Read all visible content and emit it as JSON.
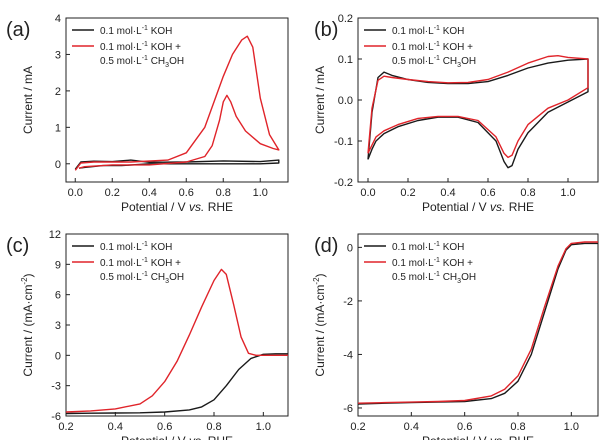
{
  "colors": {
    "black_series": "#1a1a1a",
    "red_series": "#e0242a",
    "axis": "#222222"
  },
  "xlabel": {
    "prefix": "Potential / V ",
    "italic": "vs.",
    "suffix": " RHE"
  },
  "chart_data": [
    {
      "panel": "(a)",
      "type": "line",
      "ylabel": "Current / mA",
      "xlim": [
        -0.05,
        1.15
      ],
      "ylim": [
        -0.5,
        4
      ],
      "xticks": [
        "0.0",
        "0.2",
        "0.4",
        "0.6",
        "0.8",
        "1.0"
      ],
      "yticks": [
        "0",
        "1",
        "2",
        "3",
        "4"
      ],
      "legend": {
        "position": "top-left",
        "black": {
          "main": "0.1 mol·L",
          "sup": "-1",
          "tail": " KOH"
        },
        "red_line1": {
          "main": "0.1 mol·L",
          "sup": "-1",
          "tail": " KOH +"
        },
        "red_line2": {
          "main": "0.5 mol·L",
          "sup": "-1",
          "tail": " CH",
          "sub": "3",
          "tail2": "OH"
        }
      },
      "series": [
        {
          "name": "0.1 mol·L-1 KOH",
          "color": "#1a1a1a",
          "points": [
            [
              0.0,
              -0.15
            ],
            [
              0.03,
              0.05
            ],
            [
              0.1,
              0.07
            ],
            [
              0.2,
              0.06
            ],
            [
              0.3,
              0.1
            ],
            [
              0.4,
              0.04
            ],
            [
              0.6,
              0.05
            ],
            [
              0.8,
              0.08
            ],
            [
              1.0,
              0.06
            ],
            [
              1.1,
              0.1
            ],
            [
              1.1,
              0.02
            ],
            [
              1.0,
              0.0
            ],
            [
              0.8,
              0.0
            ],
            [
              0.6,
              0.0
            ],
            [
              0.4,
              0.0
            ],
            [
              0.25,
              -0.05
            ],
            [
              0.15,
              -0.05
            ],
            [
              0.05,
              -0.1
            ],
            [
              0.02,
              -0.12
            ]
          ]
        },
        {
          "name": "0.1 mol·L-1 KOH + 0.5 mol·L-1 CH3OH",
          "color": "#e0242a",
          "points": [
            [
              0.0,
              -0.18
            ],
            [
              0.03,
              0.02
            ],
            [
              0.1,
              0.05
            ],
            [
              0.3,
              0.05
            ],
            [
              0.5,
              0.1
            ],
            [
              0.6,
              0.3
            ],
            [
              0.7,
              1.0
            ],
            [
              0.8,
              2.4
            ],
            [
              0.85,
              3.0
            ],
            [
              0.9,
              3.4
            ],
            [
              0.93,
              3.5
            ],
            [
              0.96,
              3.2
            ],
            [
              1.0,
              1.8
            ],
            [
              1.05,
              0.8
            ],
            [
              1.1,
              0.38
            ],
            [
              1.07,
              0.42
            ],
            [
              1.0,
              0.55
            ],
            [
              0.92,
              0.9
            ],
            [
              0.87,
              1.3
            ],
            [
              0.84,
              1.7
            ],
            [
              0.82,
              1.88
            ],
            [
              0.8,
              1.7
            ],
            [
              0.78,
              1.2
            ],
            [
              0.74,
              0.5
            ],
            [
              0.7,
              0.2
            ],
            [
              0.6,
              0.05
            ],
            [
              0.4,
              -0.03
            ],
            [
              0.2,
              -0.03
            ],
            [
              0.05,
              -0.08
            ],
            [
              0.02,
              -0.12
            ]
          ]
        }
      ]
    },
    {
      "panel": "(b)",
      "type": "line",
      "ylabel": "Current / mA",
      "xlim": [
        -0.05,
        1.15
      ],
      "ylim": [
        -0.2,
        0.2
      ],
      "xticks": [
        "0.0",
        "0.2",
        "0.4",
        "0.6",
        "0.8",
        "1.0"
      ],
      "yticks": [
        "-0.2",
        "-0.1",
        "0.0",
        "0.1",
        "0.2"
      ],
      "legend": {
        "position": "top-left",
        "black": {
          "main": "0.1 mol·L",
          "sup": "-1",
          "tail": " KOH"
        },
        "red_line1": {
          "main": "0.1 mol·L",
          "sup": "-1",
          "tail": " KOH +"
        },
        "red_line2": {
          "main": "0.5 mol·L",
          "sup": "-1",
          "tail": " CH",
          "sub": "3",
          "tail2": "OH"
        }
      },
      "series": [
        {
          "name": "0.1 mol·L-1 KOH",
          "color": "#1a1a1a",
          "points": [
            [
              0.0,
              -0.145
            ],
            [
              0.02,
              -0.03
            ],
            [
              0.05,
              0.055
            ],
            [
              0.08,
              0.068
            ],
            [
              0.12,
              0.06
            ],
            [
              0.2,
              0.05
            ],
            [
              0.3,
              0.043
            ],
            [
              0.4,
              0.04
            ],
            [
              0.5,
              0.04
            ],
            [
              0.6,
              0.045
            ],
            [
              0.7,
              0.06
            ],
            [
              0.8,
              0.078
            ],
            [
              0.9,
              0.09
            ],
            [
              1.0,
              0.097
            ],
            [
              1.1,
              0.1
            ],
            [
              1.1,
              0.02
            ],
            [
              1.0,
              -0.005
            ],
            [
              0.9,
              -0.03
            ],
            [
              0.8,
              -0.08
            ],
            [
              0.75,
              -0.12
            ],
            [
              0.72,
              -0.16
            ],
            [
              0.7,
              -0.165
            ],
            [
              0.68,
              -0.15
            ],
            [
              0.64,
              -0.1
            ],
            [
              0.55,
              -0.055
            ],
            [
              0.45,
              -0.042
            ],
            [
              0.35,
              -0.042
            ],
            [
              0.25,
              -0.05
            ],
            [
              0.15,
              -0.065
            ],
            [
              0.08,
              -0.082
            ],
            [
              0.04,
              -0.1
            ],
            [
              0.02,
              -0.12
            ],
            [
              0.0,
              -0.145
            ]
          ]
        },
        {
          "name": "0.1 mol·L-1 KOH + 0.5 mol·L-1 CH3OH",
          "color": "#e0242a",
          "points": [
            [
              0.0,
              -0.13
            ],
            [
              0.02,
              -0.02
            ],
            [
              0.05,
              0.048
            ],
            [
              0.08,
              0.058
            ],
            [
              0.12,
              0.055
            ],
            [
              0.2,
              0.05
            ],
            [
              0.3,
              0.045
            ],
            [
              0.4,
              0.042
            ],
            [
              0.5,
              0.043
            ],
            [
              0.6,
              0.05
            ],
            [
              0.7,
              0.068
            ],
            [
              0.8,
              0.09
            ],
            [
              0.9,
              0.106
            ],
            [
              0.95,
              0.108
            ],
            [
              1.0,
              0.104
            ],
            [
              1.1,
              0.1
            ],
            [
              1.1,
              0.03
            ],
            [
              1.0,
              0.0
            ],
            [
              0.9,
              -0.02
            ],
            [
              0.8,
              -0.06
            ],
            [
              0.75,
              -0.1
            ],
            [
              0.72,
              -0.135
            ],
            [
              0.7,
              -0.14
            ],
            [
              0.68,
              -0.13
            ],
            [
              0.64,
              -0.09
            ],
            [
              0.55,
              -0.05
            ],
            [
              0.45,
              -0.04
            ],
            [
              0.35,
              -0.04
            ],
            [
              0.25,
              -0.045
            ],
            [
              0.15,
              -0.06
            ],
            [
              0.08,
              -0.075
            ],
            [
              0.04,
              -0.09
            ],
            [
              0.02,
              -0.11
            ],
            [
              0.0,
              -0.13
            ]
          ]
        }
      ]
    },
    {
      "panel": "(c)",
      "type": "line",
      "ylabel": "Current / (mA·cm",
      "ylabel_sup": "-2",
      "ylabel_tail": ")",
      "xlim": [
        0.2,
        1.1
      ],
      "ylim": [
        -6,
        12
      ],
      "xticks": [
        "0.2",
        "0.4",
        "0.6",
        "0.8",
        "1.0"
      ],
      "yticks": [
        "-6",
        "-3",
        "0",
        "3",
        "6",
        "9",
        "12"
      ],
      "legend": {
        "position": "top-left",
        "black": {
          "main": "0.1 mol·L",
          "sup": "-1",
          "tail": " KOH"
        },
        "red_line1": {
          "main": "0.1 mol·L",
          "sup": "-1",
          "tail": " KOH +"
        },
        "red_line2": {
          "main": "0.5 mol·L",
          "sup": "-1",
          "tail": " CH",
          "sub": "3",
          "tail2": "OH"
        }
      },
      "series": [
        {
          "name": "0.1 mol·L-1 KOH",
          "color": "#1a1a1a",
          "points": [
            [
              0.2,
              -5.75
            ],
            [
              0.3,
              -5.72
            ],
            [
              0.4,
              -5.7
            ],
            [
              0.5,
              -5.68
            ],
            [
              0.6,
              -5.6
            ],
            [
              0.7,
              -5.4
            ],
            [
              0.75,
              -5.1
            ],
            [
              0.8,
              -4.4
            ],
            [
              0.85,
              -3.0
            ],
            [
              0.9,
              -1.4
            ],
            [
              0.95,
              -0.3
            ],
            [
              1.0,
              0.1
            ],
            [
              1.05,
              0.15
            ],
            [
              1.1,
              0.15
            ]
          ]
        },
        {
          "name": "0.1 mol·L-1 KOH + 0.5 mol·L-1 CH3OH",
          "color": "#e0242a",
          "points": [
            [
              0.2,
              -5.6
            ],
            [
              0.3,
              -5.5
            ],
            [
              0.4,
              -5.3
            ],
            [
              0.5,
              -4.8
            ],
            [
              0.55,
              -4.0
            ],
            [
              0.6,
              -2.6
            ],
            [
              0.65,
              -0.6
            ],
            [
              0.7,
              2.0
            ],
            [
              0.75,
              4.8
            ],
            [
              0.8,
              7.4
            ],
            [
              0.83,
              8.5
            ],
            [
              0.85,
              8.0
            ],
            [
              0.88,
              5.0
            ],
            [
              0.91,
              1.8
            ],
            [
              0.94,
              0.2
            ],
            [
              0.97,
              0.0
            ],
            [
              1.0,
              0.0
            ],
            [
              1.1,
              0.0
            ]
          ]
        }
      ]
    },
    {
      "panel": "(d)",
      "type": "line",
      "ylabel": "Current / (mA·cm",
      "ylabel_sup": "-2",
      "ylabel_tail": ")",
      "xlim": [
        0.2,
        1.1
      ],
      "ylim": [
        -6.3,
        0.5
      ],
      "xticks": [
        "0.2",
        "0.4",
        "0.6",
        "0.8",
        "1.0"
      ],
      "yticks": [
        "-6",
        "-4",
        "-2",
        "0"
      ],
      "legend": {
        "position": "top-left",
        "black": {
          "main": "0.1 mol·L",
          "sup": "-1",
          "tail": " KOH"
        },
        "red_line1": {
          "main": "0.1 mol·L",
          "sup": "-1",
          "tail": " KOH +"
        },
        "red_line2": {
          "main": "0.5 mol·L",
          "sup": "-1",
          "tail": " CH",
          "sub": "3",
          "tail2": "OH"
        }
      },
      "series": [
        {
          "name": "0.1 mol·L-1 KOH",
          "color": "#1a1a1a",
          "points": [
            [
              0.2,
              -5.85
            ],
            [
              0.3,
              -5.82
            ],
            [
              0.4,
              -5.8
            ],
            [
              0.5,
              -5.78
            ],
            [
              0.6,
              -5.76
            ],
            [
              0.7,
              -5.65
            ],
            [
              0.75,
              -5.45
            ],
            [
              0.8,
              -5.0
            ],
            [
              0.85,
              -4.0
            ],
            [
              0.9,
              -2.4
            ],
            [
              0.95,
              -0.8
            ],
            [
              0.98,
              -0.1
            ],
            [
              1.0,
              0.1
            ],
            [
              1.05,
              0.15
            ],
            [
              1.1,
              0.15
            ]
          ]
        },
        {
          "name": "0.1 mol·L-1 KOH + 0.5 mol·L-1 CH3OH",
          "color": "#e0242a",
          "points": [
            [
              0.2,
              -5.82
            ],
            [
              0.3,
              -5.8
            ],
            [
              0.4,
              -5.78
            ],
            [
              0.5,
              -5.76
            ],
            [
              0.6,
              -5.72
            ],
            [
              0.7,
              -5.55
            ],
            [
              0.75,
              -5.3
            ],
            [
              0.8,
              -4.8
            ],
            [
              0.85,
              -3.8
            ],
            [
              0.9,
              -2.2
            ],
            [
              0.95,
              -0.7
            ],
            [
              0.98,
              -0.05
            ],
            [
              1.0,
              0.15
            ],
            [
              1.05,
              0.2
            ],
            [
              1.1,
              0.2
            ]
          ]
        }
      ]
    }
  ]
}
